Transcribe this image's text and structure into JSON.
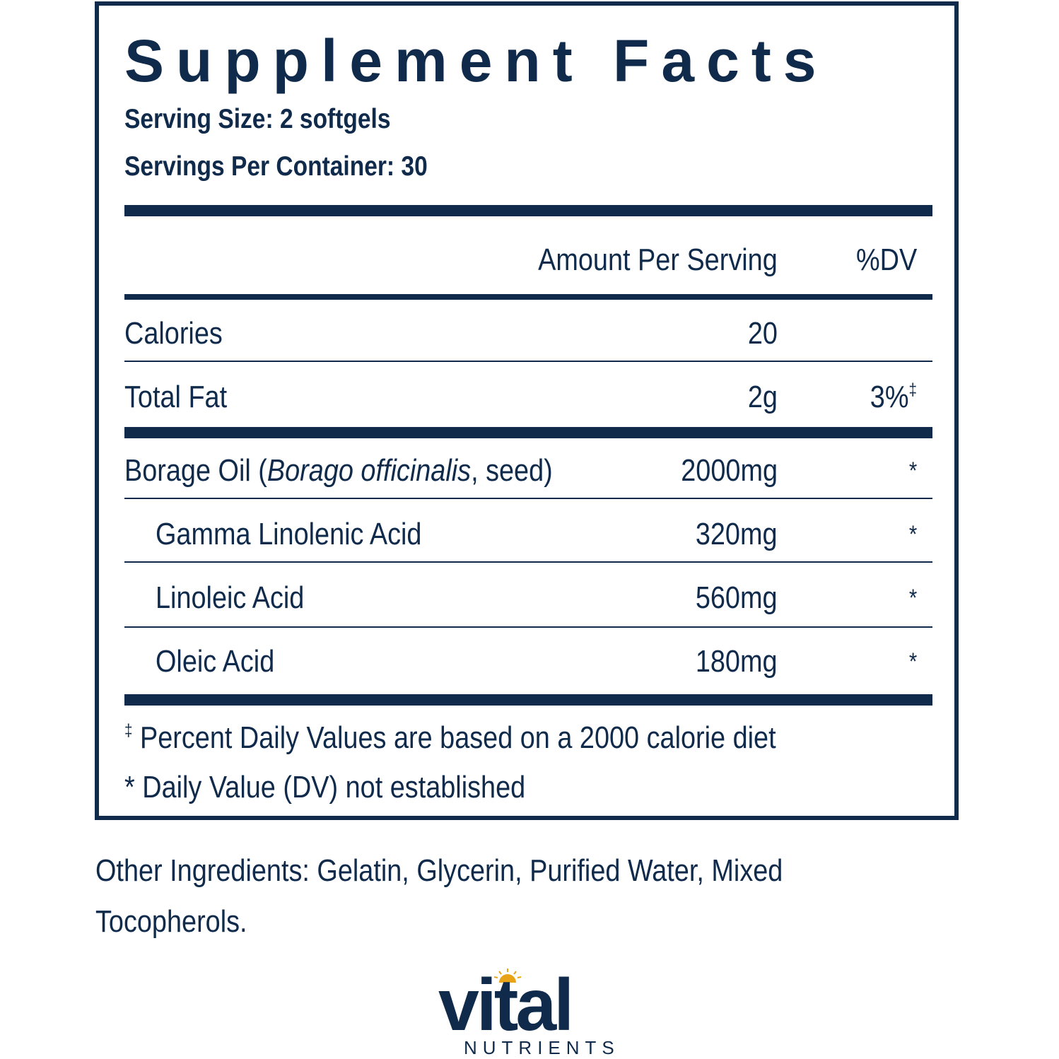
{
  "panel": {
    "title": "Supplement Facts",
    "serving_size": "Serving Size: 2 softgels",
    "servings_per_container": "Servings Per Container: 30",
    "header_amount": "Amount Per Serving",
    "header_dv": "%DV",
    "rows": [
      {
        "label": "Calories",
        "amount": "20",
        "dv": ""
      },
      {
        "label": "Total Fat",
        "amount": "2g",
        "dv": "3%",
        "dv_mark": "‡"
      },
      {
        "label_prefix": "Borage Oil (",
        "label_italic": "Borago officinalis",
        "label_suffix": ", seed)",
        "amount": "2000mg",
        "dv": "*"
      },
      {
        "label": "Gamma Linolenic Acid",
        "amount": "320mg",
        "dv": "*"
      },
      {
        "label": "Linoleic Acid",
        "amount": "560mg",
        "dv": "*"
      },
      {
        "label": "Oleic Acid",
        "amount": "180mg",
        "dv": "*"
      }
    ],
    "footnotes": {
      "percent_mark": "‡",
      "percent_text": " Percent Daily Values are based on a 2000 calorie diet",
      "dv_text": "* Daily Value (DV) not established"
    }
  },
  "other_ingredients": "Other Ingredients: Gelatin, Glycerin, Purified Water, Mixed Tocopherols.",
  "brand": {
    "word": "vital",
    "subtitle": "NUTRIENTS",
    "color": "#0f2a4a",
    "sun_color": "#e8a317"
  }
}
